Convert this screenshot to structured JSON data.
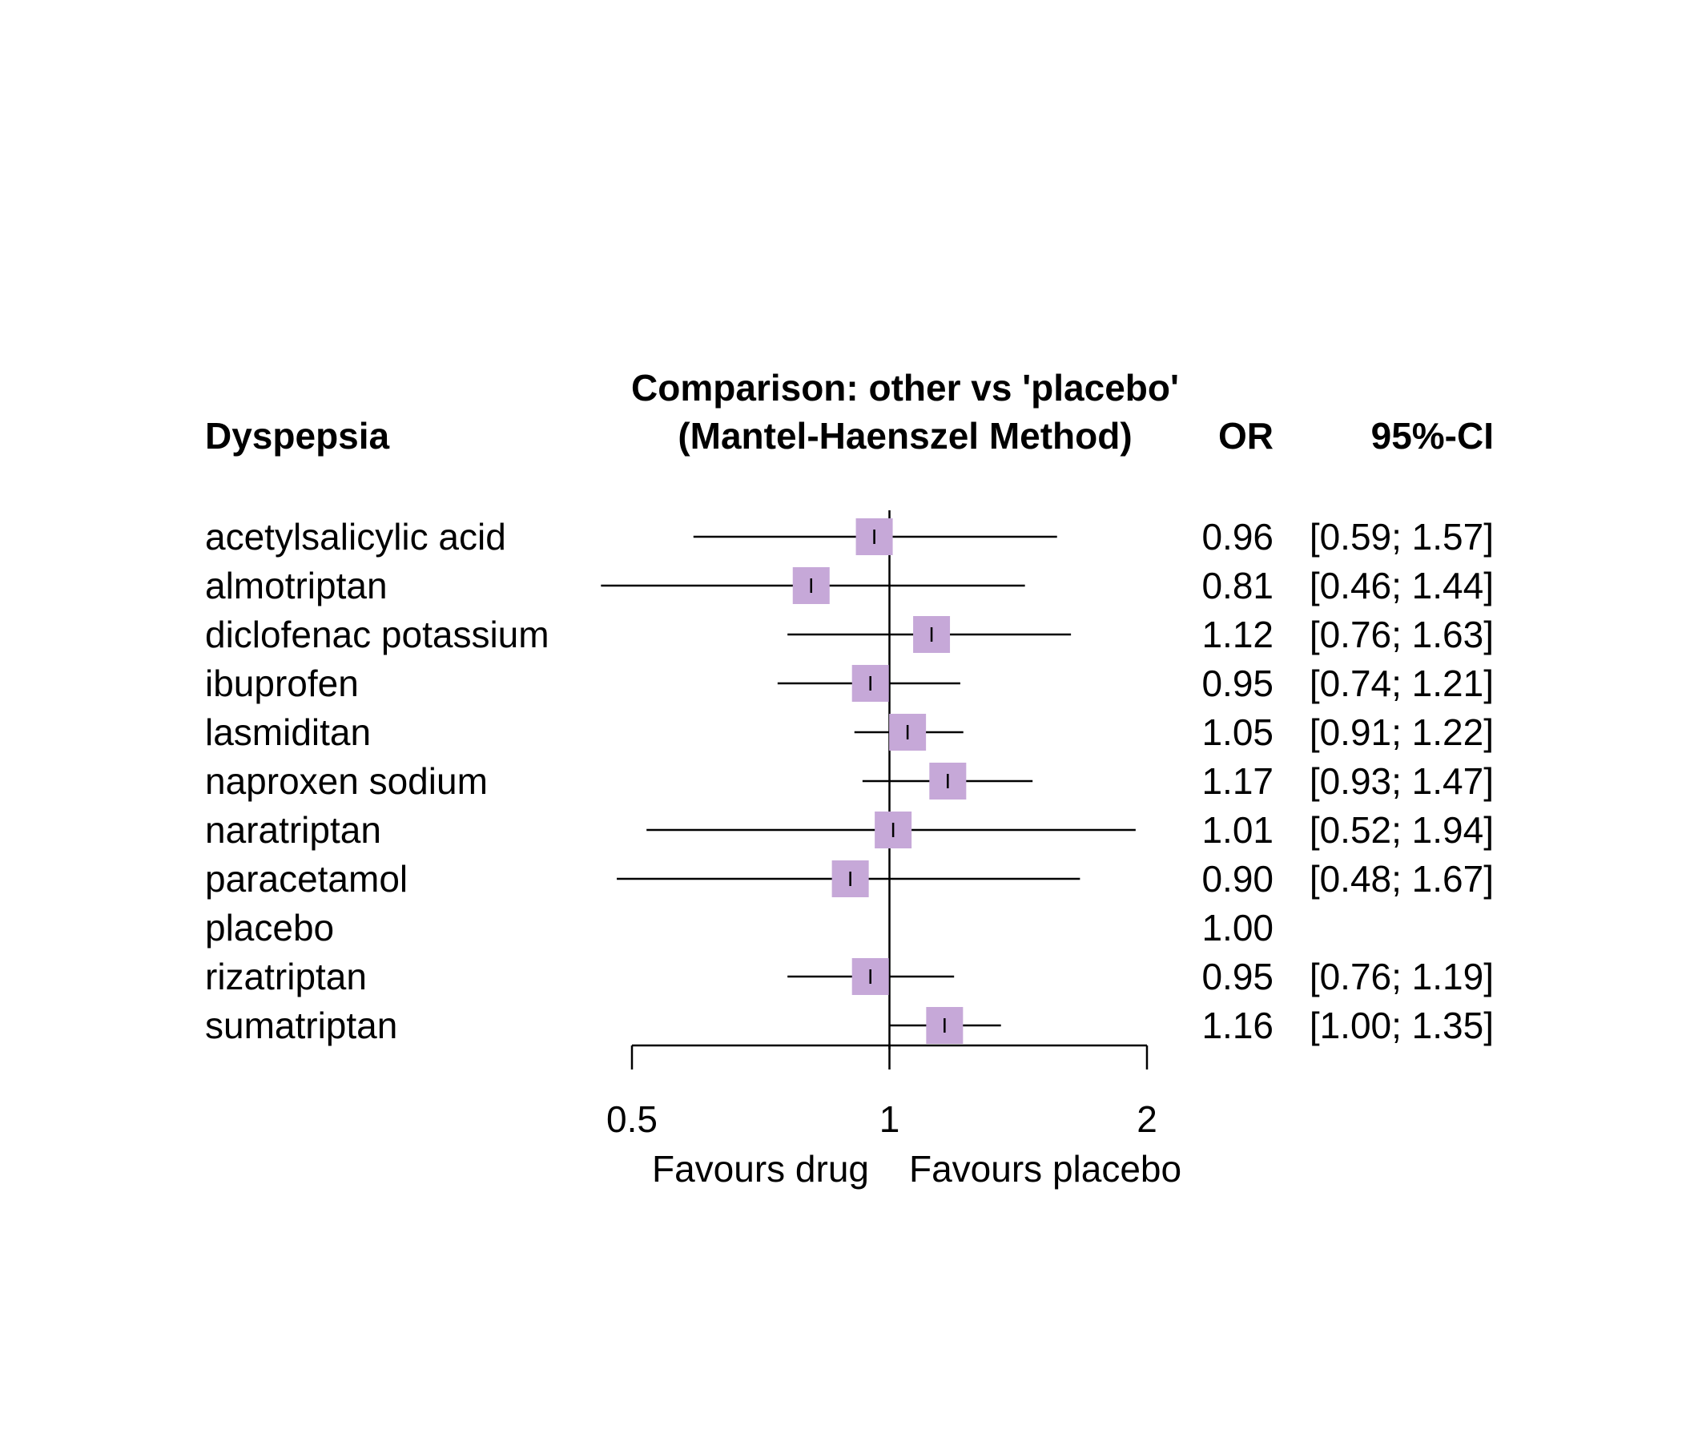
{
  "chart_data": {
    "type": "forest",
    "outcome_label": "Dyspepsia",
    "title_line1": "Comparison: other vs 'placebo'",
    "title_line2": "(Mantel-Haenszel Method)",
    "col_or_header": "OR",
    "col_ci_header": "95%-CI",
    "x_scale": "log",
    "xlim": [
      0.5,
      2
    ],
    "xticks": [
      "0.5",
      "1",
      "2"
    ],
    "reference_line": 1,
    "label_left": "Favours drug",
    "label_right": "Favours placebo",
    "marker_color": "#c6a8d8",
    "rows": [
      {
        "label": "acetylsalicylic acid",
        "or": 0.96,
        "lo": 0.59,
        "hi": 1.57,
        "or_text": "0.96",
        "ci_text": "[0.59; 1.57]",
        "weight": 1
      },
      {
        "label": "almotriptan",
        "or": 0.81,
        "lo": 0.46,
        "hi": 1.44,
        "or_text": "0.81",
        "ci_text": "[0.46; 1.44]",
        "weight": 1
      },
      {
        "label": "diclofenac potassium",
        "or": 1.12,
        "lo": 0.76,
        "hi": 1.63,
        "or_text": "1.12",
        "ci_text": "[0.76; 1.63]",
        "weight": 1
      },
      {
        "label": "ibuprofen",
        "or": 0.95,
        "lo": 0.74,
        "hi": 1.21,
        "or_text": "0.95",
        "ci_text": "[0.74; 1.21]",
        "weight": 1
      },
      {
        "label": "lasmiditan",
        "or": 1.05,
        "lo": 0.91,
        "hi": 1.22,
        "or_text": "1.05",
        "ci_text": "[0.91; 1.22]",
        "weight": 1
      },
      {
        "label": "naproxen sodium",
        "or": 1.17,
        "lo": 0.93,
        "hi": 1.47,
        "or_text": "1.17",
        "ci_text": "[0.93; 1.47]",
        "weight": 1
      },
      {
        "label": "naratriptan",
        "or": 1.01,
        "lo": 0.52,
        "hi": 1.94,
        "or_text": "1.01",
        "ci_text": "[0.52; 1.94]",
        "weight": 1
      },
      {
        "label": "paracetamol",
        "or": 0.9,
        "lo": 0.48,
        "hi": 1.67,
        "or_text": "0.90",
        "ci_text": "[0.48; 1.67]",
        "weight": 1
      },
      {
        "label": "placebo",
        "or": 1.0,
        "lo": null,
        "hi": null,
        "or_text": "1.00",
        "ci_text": "",
        "weight": 0
      },
      {
        "label": "rizatriptan",
        "or": 0.95,
        "lo": 0.76,
        "hi": 1.19,
        "or_text": "0.95",
        "ci_text": "[0.76; 1.19]",
        "weight": 1
      },
      {
        "label": "sumatriptan",
        "or": 1.16,
        "lo": 1.0,
        "hi": 1.35,
        "or_text": "1.16",
        "ci_text": "[1.00; 1.35]",
        "weight": 1
      }
    ]
  }
}
